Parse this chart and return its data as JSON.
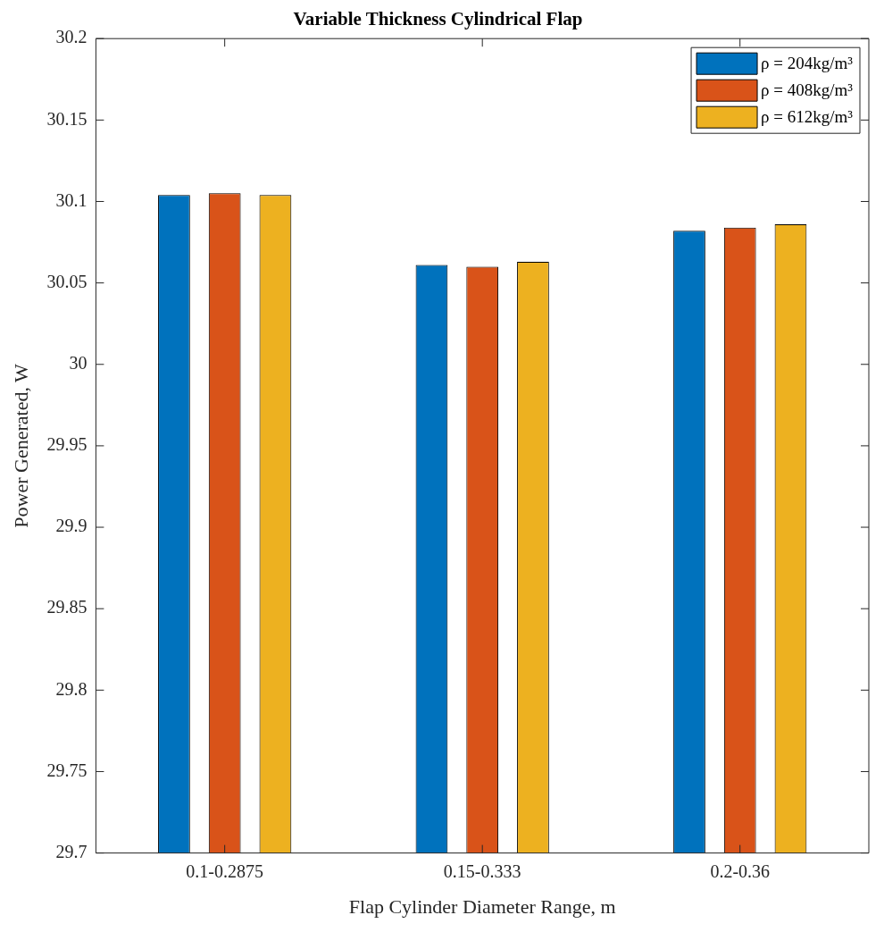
{
  "chart_data": {
    "type": "bar",
    "title": "Variable Thickness Cylindrical Flap",
    "xlabel": "Flap Cylinder Diameter Range, m",
    "ylabel": "Power Generated, W",
    "categories": [
      "0.1-0.2875",
      "0.15-0.333",
      "0.2-0.36"
    ],
    "series": [
      {
        "name": "ρ = 204kg/m³",
        "color": "#0072bd",
        "values": [
          30.104,
          30.061,
          30.082
        ]
      },
      {
        "name": "ρ = 408kg/m³",
        "color": "#d95319",
        "values": [
          30.105,
          30.06,
          30.084
        ]
      },
      {
        "name": "ρ = 612kg/m³",
        "color": "#edb120",
        "values": [
          30.104,
          30.063,
          30.086
        ]
      }
    ],
    "ylim": [
      29.7,
      30.2
    ],
    "yticks": [
      29.7,
      29.75,
      29.8,
      29.85,
      29.9,
      29.95,
      30,
      30.05,
      30.1,
      30.15,
      30.2
    ],
    "grid": false,
    "legend": "top right"
  }
}
